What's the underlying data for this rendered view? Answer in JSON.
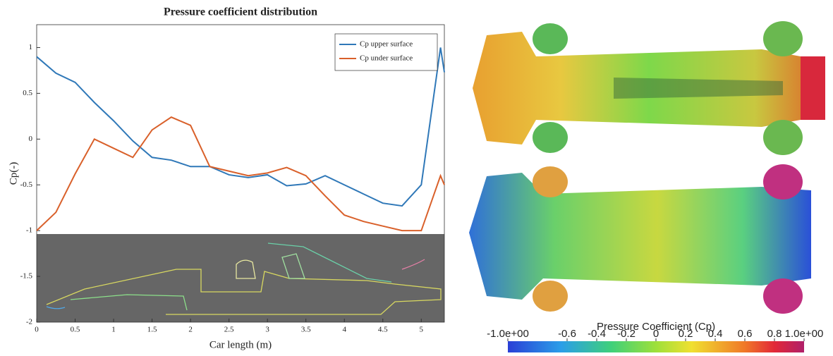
{
  "chart_data": {
    "type": "line",
    "title": "Pressure coefficient distribution",
    "x_label": "Car length (m)",
    "y_label": "Cp(-)",
    "x": [
      0,
      0.25,
      0.5,
      0.75,
      1,
      1.25,
      1.5,
      1.75,
      2,
      2.25,
      2.5,
      2.75,
      3,
      3.25,
      3.5,
      3.75,
      4,
      4.25,
      4.5,
      4.75,
      5,
      5.25,
      5.3
    ],
    "series": [
      {
        "name": "Cp upper surface",
        "color": "#2f78b8",
        "values": [
          0.9,
          0.72,
          0.62,
          0.4,
          0.2,
          -0.02,
          -0.2,
          -0.23,
          -0.3,
          -0.3,
          -0.39,
          -0.42,
          -0.39,
          -0.51,
          -0.49,
          -0.4,
          -0.5,
          -0.6,
          -0.7,
          -0.73,
          -0.5,
          1.0,
          0.73
        ]
      },
      {
        "name": "Cp under surface",
        "color": "#d9602a",
        "values": [
          -1.0,
          -0.8,
          -0.38,
          0.0,
          -0.1,
          -0.2,
          0.1,
          0.24,
          0.15,
          -0.3,
          -0.35,
          -0.4,
          -0.37,
          -0.31,
          -0.4,
          -0.62,
          -0.83,
          -0.9,
          -0.95,
          -1.0,
          -1.0,
          -0.4,
          -0.5
        ]
      }
    ],
    "xlim": [
      0,
      5.3
    ],
    "ylim": [
      -2,
      1.25
    ],
    "xticks": [
      0,
      0.5,
      1,
      1.5,
      2,
      2.5,
      3,
      3.5,
      4,
      4.5,
      5
    ],
    "yticks": [
      -2,
      -1.5,
      -1,
      -0.5,
      0,
      0.5,
      1
    ],
    "legend": "upper right"
  },
  "colorbar": {
    "title": "Pressure Coefficient (Cp)",
    "lim": [
      -1,
      1
    ],
    "ticks": [
      {
        "value": -1,
        "label": "-1.0e+00"
      },
      -0.6,
      -0.4,
      -0.2,
      0,
      0.2,
      0.4,
      0.6,
      0.8,
      {
        "value": 1,
        "label": "1.0e+00"
      }
    ]
  }
}
